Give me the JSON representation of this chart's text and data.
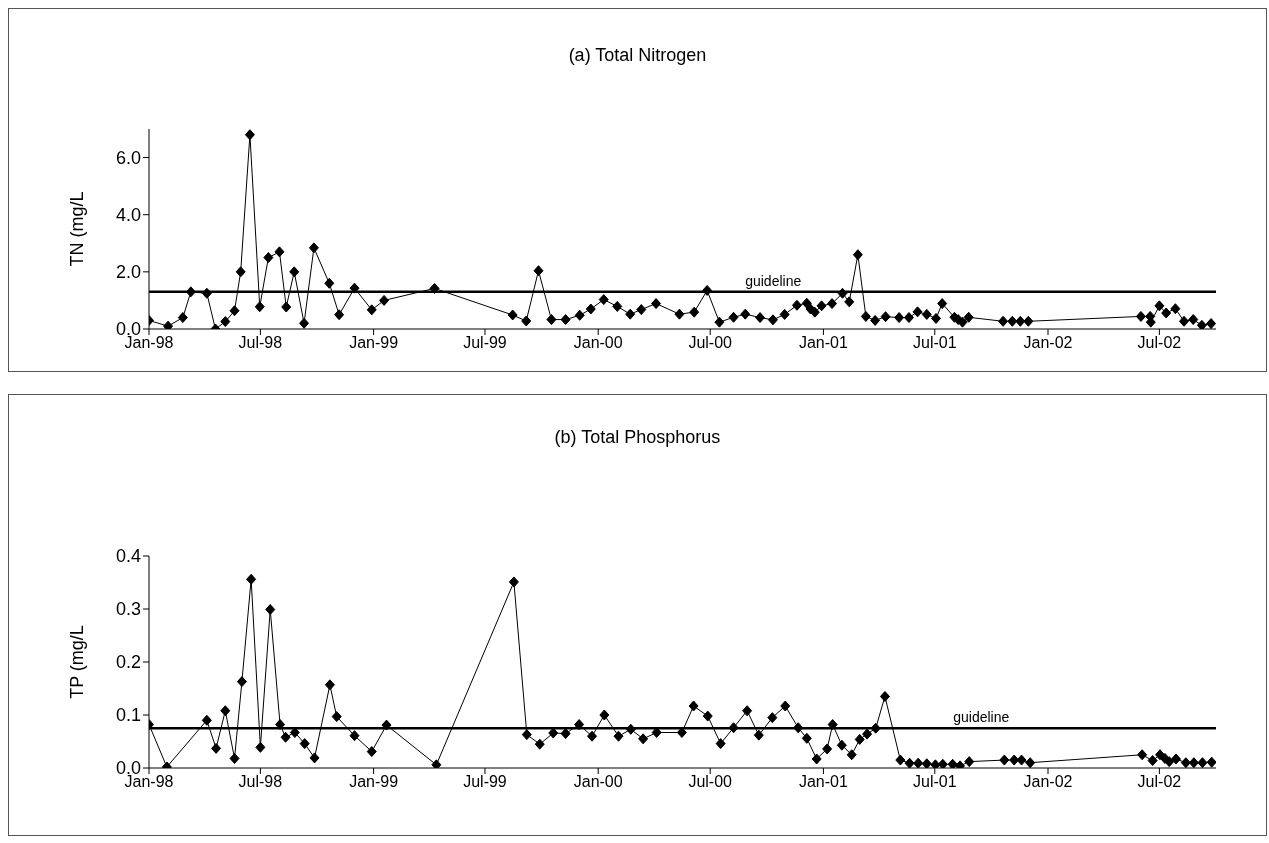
{
  "chart_data": [
    {
      "type": "line",
      "title": "(a) Total Nitrogen",
      "ylabel": "TN (mg/L",
      "color": "#000000",
      "marker": "diamond",
      "x": [
        "1998-01-01",
        "1998-02-01",
        "1998-02-25",
        "1998-03-10",
        "1998-04-05",
        "1998-04-19",
        "1998-05-05",
        "1998-05-20",
        "1998-05-30",
        "1998-06-14",
        "1998-06-30",
        "1998-07-14",
        "1998-08-01",
        "1998-08-12",
        "1998-08-25",
        "1998-09-10",
        "1998-09-26",
        "1998-10-21",
        "1998-11-06",
        "1998-12-01",
        "1998-12-29",
        "1999-01-18",
        "1999-04-10",
        "1999-08-15",
        "1999-09-06",
        "1999-09-26",
        "1999-10-17",
        "1999-11-09",
        "1999-12-02",
        "1999-12-20",
        "2000-01-10",
        "2000-02-01",
        "2000-02-22",
        "2000-03-11",
        "2000-04-04",
        "2000-05-12",
        "2000-06-05",
        "2000-06-26",
        "2000-07-16",
        "2000-08-08",
        "2000-08-27",
        "2000-09-20",
        "2000-10-11",
        "2000-10-30",
        "2000-11-19",
        "2000-12-05",
        "2000-12-11",
        "2000-12-18",
        "2000-12-29",
        "2001-01-15",
        "2001-02-01",
        "2001-02-12",
        "2001-02-26",
        "2001-03-11",
        "2001-03-26",
        "2001-04-12",
        "2001-05-04",
        "2001-05-20",
        "2001-06-03",
        "2001-06-18",
        "2001-07-03",
        "2001-07-13",
        "2001-08-02",
        "2001-08-08",
        "2001-08-15",
        "2001-08-25",
        "2001-10-20",
        "2001-11-04",
        "2001-11-17",
        "2001-11-30",
        "2002-06-01",
        "2002-06-16",
        "2002-06-17",
        "2002-07-01",
        "2002-07-12",
        "2002-07-27",
        "2002-08-10",
        "2002-08-25",
        "2002-09-08",
        "2002-09-23"
      ],
      "values": [
        0.3,
        0.1,
        0.4,
        1.3,
        1.25,
        0.0,
        0.26,
        0.64,
        2.0,
        6.8,
        0.78,
        2.5,
        2.7,
        0.77,
        2.0,
        0.2,
        2.84,
        1.6,
        0.5,
        1.43,
        0.67,
        1.0,
        1.42,
        0.49,
        0.28,
        2.04,
        0.33,
        0.33,
        0.48,
        0.7,
        1.03,
        0.79,
        0.52,
        0.68,
        0.89,
        0.52,
        0.59,
        1.35,
        0.24,
        0.41,
        0.52,
        0.4,
        0.32,
        0.51,
        0.83,
        0.9,
        0.7,
        0.59,
        0.81,
        0.89,
        1.25,
        0.95,
        2.6,
        0.44,
        0.3,
        0.43,
        0.4,
        0.4,
        0.6,
        0.51,
        0.37,
        0.89,
        0.41,
        0.33,
        0.24,
        0.41,
        0.27,
        0.27,
        0.27,
        0.27,
        0.44,
        0.44,
        0.24,
        0.81,
        0.56,
        0.71,
        0.27,
        0.33,
        0.13,
        0.19
      ],
      "xlim": [
        "1998-01-01",
        "2002-10-01"
      ],
      "xticks": [
        {
          "value": "1998-01-01",
          "label": "Jan-98"
        },
        {
          "value": "1998-07-01",
          "label": "Jul-98"
        },
        {
          "value": "1999-01-01",
          "label": "Jan-99"
        },
        {
          "value": "1999-07-01",
          "label": "Jul-99"
        },
        {
          "value": "2000-01-01",
          "label": "Jan-00"
        },
        {
          "value": "2000-07-01",
          "label": "Jul-00"
        },
        {
          "value": "2001-01-01",
          "label": "Jan-01"
        },
        {
          "value": "2001-07-01",
          "label": "Jul-01"
        },
        {
          "value": "2002-01-01",
          "label": "Jan-02"
        },
        {
          "value": "2002-07-01",
          "label": "Jul-02"
        }
      ],
      "ylim": [
        0,
        7
      ],
      "yticks": [
        {
          "value": 0,
          "label": "0.0"
        },
        {
          "value": 2,
          "label": "2.0"
        },
        {
          "value": 4,
          "label": "4.0"
        },
        {
          "value": 6,
          "label": "6.0"
        }
      ],
      "ref_lines": [
        {
          "axis": "y",
          "value": 1.3,
          "label": "guideline",
          "color": "#000000"
        }
      ]
    },
    {
      "type": "line",
      "title": "(b) Total Phosphorus",
      "ylabel": "TP (mg/L",
      "color": "#000000",
      "marker": "diamond",
      "x": [
        "1998-01-01",
        "1998-01-30",
        "1998-04-05",
        "1998-04-20",
        "1998-05-05",
        "1998-05-20",
        "1998-06-01",
        "1998-06-16",
        "1998-07-01",
        "1998-07-17",
        "1998-08-02",
        "1998-08-11",
        "1998-08-26",
        "1998-09-11",
        "1998-09-27",
        "1998-10-22",
        "1998-11-02",
        "1998-12-01",
        "1998-12-29",
        "1999-01-22",
        "1999-04-13",
        "1999-08-17",
        "1999-09-07",
        "1999-09-28",
        "1999-10-20",
        "1999-11-09",
        "1999-12-01",
        "1999-12-22",
        "2000-01-11",
        "2000-02-03",
        "2000-02-23",
        "2000-03-14",
        "2000-04-05",
        "2000-05-16",
        "2000-06-04",
        "2000-06-27",
        "2000-07-18",
        "2000-08-08",
        "2000-08-30",
        "2000-09-18",
        "2000-10-10",
        "2000-10-31",
        "2000-11-21",
        "2000-12-05",
        "2000-12-21",
        "2001-01-07",
        "2001-01-16",
        "2001-01-31",
        "2001-02-16",
        "2001-03-01",
        "2001-03-13",
        "2001-03-27",
        "2001-04-11",
        "2001-05-06",
        "2001-05-21",
        "2001-06-04",
        "2001-06-18",
        "2001-07-02",
        "2001-07-14",
        "2001-07-30",
        "2001-08-11",
        "2001-08-26",
        "2001-10-22",
        "2001-11-07",
        "2001-11-19",
        "2001-12-03",
        "2002-06-03",
        "2002-06-20",
        "2002-07-02",
        "2002-07-10",
        "2002-07-17",
        "2002-07-28",
        "2002-08-13",
        "2002-08-26",
        "2002-09-09",
        "2002-09-24"
      ],
      "values": [
        0.082,
        0.002,
        0.09,
        0.037,
        0.108,
        0.018,
        0.163,
        0.356,
        0.039,
        0.299,
        0.082,
        0.058,
        0.067,
        0.046,
        0.019,
        0.157,
        0.097,
        0.061,
        0.031,
        0.081,
        0.006,
        0.351,
        0.063,
        0.045,
        0.066,
        0.065,
        0.082,
        0.06,
        0.1,
        0.06,
        0.073,
        0.055,
        0.067,
        0.067,
        0.117,
        0.098,
        0.046,
        0.076,
        0.108,
        0.062,
        0.095,
        0.117,
        0.076,
        0.056,
        0.017,
        0.036,
        0.082,
        0.043,
        0.025,
        0.054,
        0.064,
        0.075,
        0.135,
        0.015,
        0.009,
        0.009,
        0.008,
        0.006,
        0.007,
        0.007,
        0.004,
        0.012,
        0.015,
        0.015,
        0.015,
        0.01,
        0.025,
        0.014,
        0.025,
        0.018,
        0.012,
        0.017,
        0.01,
        0.01,
        0.01,
        0.011
      ],
      "xlim": [
        "1998-01-01",
        "2002-10-01"
      ],
      "xticks": [
        {
          "value": "1998-01-01",
          "label": "Jan-98"
        },
        {
          "value": "1998-07-01",
          "label": "Jul-98"
        },
        {
          "value": "1999-01-01",
          "label": "Jan-99"
        },
        {
          "value": "1999-07-01",
          "label": "Jul-99"
        },
        {
          "value": "2000-01-01",
          "label": "Jan-00"
        },
        {
          "value": "2000-07-01",
          "label": "Jul-00"
        },
        {
          "value": "2001-01-01",
          "label": "Jan-01"
        },
        {
          "value": "2001-07-01",
          "label": "Jul-01"
        },
        {
          "value": "2002-01-01",
          "label": "Jan-02"
        },
        {
          "value": "2002-07-01",
          "label": "Jul-02"
        }
      ],
      "ylim": [
        0,
        0.4
      ],
      "yticks": [
        {
          "value": 0,
          "label": "0.0"
        },
        {
          "value": 0.1,
          "label": "0.1"
        },
        {
          "value": 0.2,
          "label": "0.2"
        },
        {
          "value": 0.3,
          "label": "0.3"
        },
        {
          "value": 0.4,
          "label": "0.4"
        }
      ],
      "ref_lines": [
        {
          "axis": "y",
          "value": 0.075,
          "label": "guideline",
          "color": "#000000"
        }
      ]
    }
  ]
}
